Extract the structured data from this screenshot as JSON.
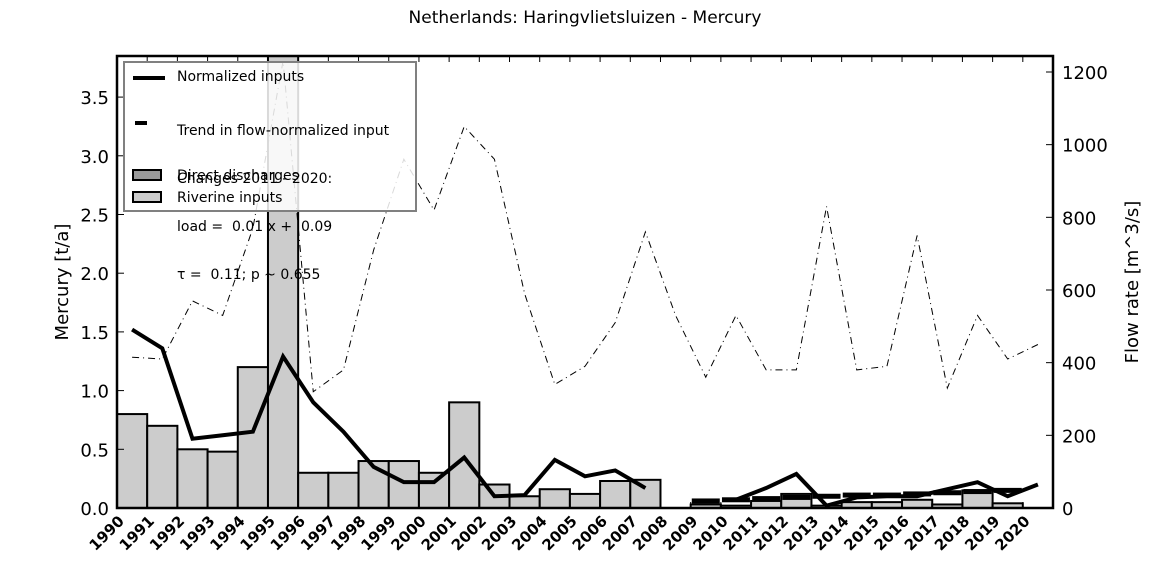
{
  "title": "Netherlands: Haringvlietsluizen - Mercury",
  "legend": {
    "normalized": "Normalized inputs",
    "trend_line1": "Trend in flow-normalized input",
    "trend_line2": "Changes 2011 - 2020:",
    "trend_line3": "load =  0.01 x +  0.09",
    "trend_line4": "τ =  0.11; p ~ 0.655",
    "direct": "Direct discharges",
    "riverine": "Riverine inputs"
  },
  "colors": {
    "riverine": "#cccccc",
    "direct": "#999999",
    "line": "#000000",
    "legend_border": "#808080"
  },
  "chart_data": {
    "type": "bar",
    "title": "Netherlands: Haringvlietsluizen - Mercury",
    "xlabel": "",
    "ylabel": "Mercury [t/a]",
    "ylabel_right": "Flow rate [m^3/s]",
    "ylim": [
      0,
      3.85
    ],
    "ylim_right": [
      0,
      1244
    ],
    "yticks": [
      "0.0",
      "0.5",
      "1.0",
      "1.5",
      "2.0",
      "2.5",
      "3.0",
      "3.5"
    ],
    "yticks_right": [
      "0",
      "200",
      "400",
      "600",
      "800",
      "1000",
      "1200"
    ],
    "legend_position": "upper left",
    "categories": [
      "1990",
      "1991",
      "1992",
      "1993",
      "1994",
      "1995",
      "1996",
      "1997",
      "1998",
      "1999",
      "2000",
      "2001",
      "2002",
      "2003",
      "2004",
      "2005",
      "2006",
      "2007",
      "2008",
      "2009",
      "2010",
      "2011",
      "2012",
      "2013",
      "2014",
      "2015",
      "2016",
      "2017",
      "2018",
      "2019",
      "2020"
    ],
    "series": [
      {
        "name": "Riverine inputs",
        "type": "bar",
        "axis": "left",
        "values": [
          0.8,
          0.7,
          0.5,
          0.48,
          1.2,
          3.9,
          0.3,
          0.3,
          0.4,
          0.4,
          0.3,
          0.9,
          0.2,
          0.1,
          0.16,
          0.12,
          0.23,
          0.24,
          0,
          0.03,
          0.02,
          0.06,
          0.12,
          0.02,
          0.05,
          0.05,
          0.07,
          0.03,
          0.15,
          0.04,
          0
        ]
      },
      {
        "name": "Direct discharges",
        "type": "bar",
        "axis": "left",
        "values": [
          0,
          0,
          0,
          0,
          0,
          0,
          0,
          0,
          0,
          0,
          0,
          0,
          0,
          0,
          0,
          0,
          0,
          0,
          0,
          0,
          0,
          0,
          0,
          0,
          0,
          0,
          0,
          0,
          0,
          0,
          0
        ]
      },
      {
        "name": "Normalized inputs",
        "type": "line",
        "axis": "left",
        "values": [
          1.52,
          1.36,
          0.59,
          0.62,
          0.65,
          1.29,
          0.9,
          0.65,
          0.35,
          0.22,
          0.22,
          0.43,
          0.1,
          0.11,
          0.41,
          0.27,
          0.32,
          0.17,
          null,
          null,
          0.07,
          0.17,
          0.29,
          0.02,
          0.09,
          0.1,
          0.1,
          0.16,
          0.22,
          0.1,
          0.2
        ]
      },
      {
        "name": "Trend in flow-normalized input",
        "type": "dash",
        "axis": "left",
        "values": [
          null,
          null,
          null,
          null,
          null,
          null,
          null,
          null,
          null,
          null,
          null,
          null,
          null,
          null,
          null,
          null,
          null,
          null,
          null,
          0.06,
          0.07,
          0.08,
          0.09,
          0.1,
          0.11,
          0.11,
          0.12,
          0.13,
          0.14,
          0.15,
          null
        ]
      },
      {
        "name": "Flow rate",
        "type": "line",
        "style": "dashdot",
        "axis": "right",
        "values": [
          415,
          410,
          570,
          530,
          770,
          1230,
          320,
          380,
          710,
          960,
          820,
          1050,
          960,
          590,
          340,
          390,
          510,
          760,
          530,
          360,
          530,
          380,
          380,
          830,
          380,
          390,
          750,
          330,
          530,
          410,
          450
        ]
      }
    ]
  }
}
